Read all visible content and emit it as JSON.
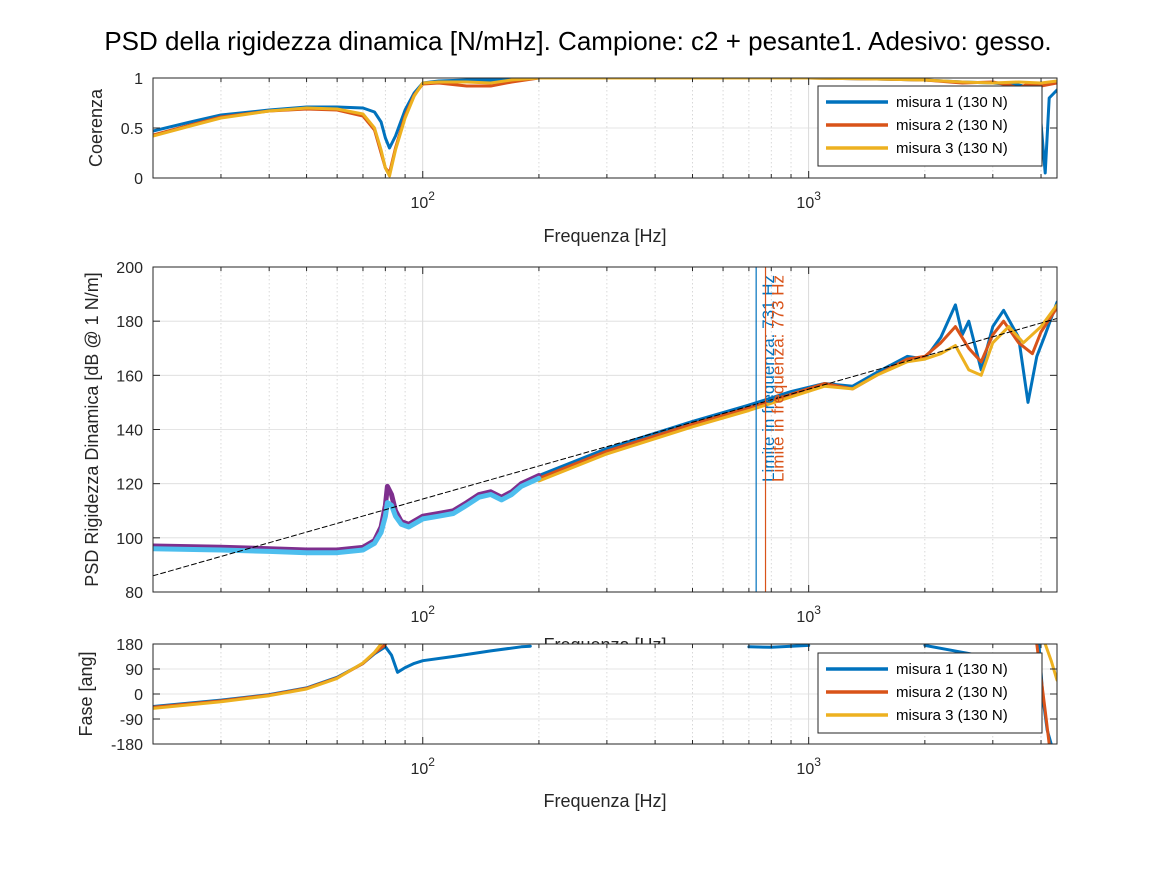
{
  "title": "PSD della rigidezza dinamica [N/mHz]. Campione: c2 + pesante1. Adesivo: gesso.",
  "colors": {
    "m1": "#0072BD",
    "m2": "#D95319",
    "m3": "#EDB120",
    "purple": "#7E2F8E",
    "lightblue": "#4DBEEE",
    "fit": "#000000",
    "vl1": "#0072BD",
    "vl2": "#D95319"
  },
  "chart_data": [
    {
      "id": "coherence",
      "type": "line",
      "xscale": "log",
      "xlim": [
        20,
        4400
      ],
      "ylim": [
        0,
        1
      ],
      "xticks": [
        100,
        1000
      ],
      "xtick_labels": [
        "10²",
        "10³"
      ],
      "yticks": [
        0,
        0.5,
        1
      ],
      "ytick_labels": [
        "0",
        "0.5",
        "1"
      ],
      "xlabel": "Frequenza [Hz]",
      "ylabel": "Coerenza",
      "grid": true,
      "legend": {
        "position": "top-right",
        "entries": [
          "misura 1 (130 N)",
          "misura 2 (130 N)",
          "misura 3 (130 N)"
        ]
      },
      "series": [
        {
          "name": "misura 1 (130 N)",
          "color": "m1",
          "x": [
            20,
            25,
            30,
            40,
            50,
            60,
            70,
            75,
            78,
            80,
            82,
            85,
            90,
            95,
            100,
            110,
            130,
            160,
            200,
            400,
            1000,
            1500,
            2000,
            2500,
            3000,
            3500,
            3800,
            4000,
            4100,
            4200,
            4400
          ],
          "y": [
            0.47,
            0.56,
            0.63,
            0.68,
            0.71,
            0.71,
            0.7,
            0.66,
            0.56,
            0.4,
            0.3,
            0.42,
            0.68,
            0.85,
            0.95,
            0.97,
            0.98,
            0.98,
            1.0,
            1.0,
            1.0,
            0.99,
            0.98,
            0.96,
            0.95,
            0.93,
            0.9,
            0.55,
            0.05,
            0.8,
            0.88
          ]
        },
        {
          "name": "misura 2 (130 N)",
          "color": "m2",
          "x": [
            20,
            25,
            30,
            40,
            50,
            60,
            70,
            75,
            78,
            80,
            82,
            85,
            90,
            95,
            100,
            110,
            130,
            150,
            170,
            200,
            400,
            1000,
            1500,
            2000,
            2500,
            3000,
            3300,
            3500,
            3700,
            4000,
            4400
          ],
          "y": [
            0.43,
            0.53,
            0.61,
            0.67,
            0.69,
            0.68,
            0.62,
            0.48,
            0.25,
            0.1,
            0.05,
            0.3,
            0.62,
            0.83,
            0.94,
            0.95,
            0.92,
            0.92,
            0.96,
            1.0,
            1.0,
            1.0,
            0.99,
            0.98,
            0.95,
            0.96,
            0.93,
            0.9,
            0.94,
            0.92,
            0.95
          ]
        },
        {
          "name": "misura 3 (130 N)",
          "color": "m3",
          "x": [
            20,
            25,
            30,
            40,
            50,
            60,
            70,
            75,
            78,
            80,
            82,
            85,
            90,
            95,
            100,
            110,
            130,
            150,
            170,
            200,
            400,
            1000,
            1500,
            2000,
            2500,
            3000,
            3500,
            4000,
            4400
          ],
          "y": [
            0.42,
            0.52,
            0.6,
            0.67,
            0.7,
            0.69,
            0.64,
            0.5,
            0.28,
            0.1,
            0.02,
            0.28,
            0.6,
            0.82,
            0.95,
            0.96,
            0.96,
            0.95,
            0.98,
            1.0,
            1.0,
            1.0,
            0.99,
            0.98,
            0.96,
            0.95,
            0.96,
            0.95,
            0.97
          ]
        }
      ]
    },
    {
      "id": "psd",
      "type": "line",
      "xscale": "log",
      "xlim": [
        20,
        4400
      ],
      "ylim": [
        80,
        200
      ],
      "xticks": [
        100,
        1000
      ],
      "xtick_labels": [
        "10²",
        "10³"
      ],
      "yticks": [
        80,
        100,
        120,
        140,
        160,
        180,
        200
      ],
      "ytick_labels": [
        "80",
        "100",
        "120",
        "140",
        "160",
        "180",
        "200"
      ],
      "xlabel": "Frequenza [Hz]",
      "ylabel": "PSD Rigidezza Dinamica [dB @ 1 N/m]",
      "grid": true,
      "series": [
        {
          "name": "misura 1 (130 N)",
          "color": "m1",
          "x": [
            200,
            300,
            500,
            700,
            900,
            1100,
            1300,
            1500,
            1800,
            2000,
            2200,
            2400,
            2500,
            2600,
            2800,
            3000,
            3200,
            3500,
            3700,
            3900,
            4100,
            4400
          ],
          "y": [
            123,
            133,
            143,
            149,
            154,
            157,
            156,
            161,
            167,
            166,
            174,
            186,
            175,
            180,
            162,
            178,
            184,
            174,
            150,
            167,
            175,
            187
          ]
        },
        {
          "name": "misura 2 (130 N)",
          "color": "m2",
          "x": [
            200,
            300,
            500,
            700,
            900,
            1100,
            1300,
            1500,
            1800,
            2000,
            2200,
            2400,
            2600,
            2800,
            3000,
            3200,
            3500,
            3800,
            4000,
            4400
          ],
          "y": [
            122,
            132,
            142,
            148,
            153,
            157,
            155,
            160,
            166,
            167,
            172,
            178,
            170,
            165,
            175,
            180,
            172,
            168,
            176,
            185
          ]
        },
        {
          "name": "misura 3 (130 N)",
          "color": "m3",
          "x": [
            200,
            300,
            500,
            700,
            900,
            1100,
            1300,
            1500,
            1800,
            2000,
            2200,
            2400,
            2600,
            2800,
            3000,
            3300,
            3600,
            4000,
            4400
          ],
          "y": [
            121,
            131,
            141,
            147,
            152,
            156,
            155,
            160,
            165,
            166,
            168,
            171,
            162,
            160,
            172,
            178,
            172,
            178,
            186
          ]
        },
        {
          "name": "",
          "color": "purple",
          "x": [
            20,
            30,
            40,
            50,
            60,
            70,
            75,
            78,
            80,
            81,
            83,
            85,
            88,
            92,
            100,
            110,
            120,
            130,
            140,
            150,
            160,
            170,
            180,
            200
          ],
          "y": [
            97,
            96.5,
            96,
            95.5,
            95.5,
            96.5,
            99,
            104,
            112,
            119,
            116,
            110,
            106,
            105,
            108,
            109,
            110,
            113,
            116,
            117,
            115,
            117,
            120,
            123
          ]
        },
        {
          "name": "",
          "color": "lightblue",
          "x": [
            20,
            30,
            40,
            50,
            60,
            70,
            75,
            78,
            80,
            81,
            83,
            85,
            88,
            92,
            100,
            110,
            120,
            130,
            140,
            150,
            160,
            170,
            180,
            200
          ],
          "y": [
            96,
            95.5,
            95,
            94.5,
            94.5,
            95.5,
            98,
            102,
            108,
            113,
            112,
            108,
            105,
            104,
            107,
            108,
            109,
            112,
            115,
            116,
            114,
            116,
            119,
            122
          ]
        },
        {
          "name": "",
          "color": "fit",
          "dashed": true,
          "x": [
            20,
            4400
          ],
          "y": [
            86,
            181
          ]
        }
      ],
      "vlines": [
        {
          "x": 731,
          "color": "vl1",
          "label": "Limite in frequenza: 731 Hz"
        },
        {
          "x": 773,
          "color": "vl2",
          "label": "Limite in frequenza: 773 Hz"
        }
      ]
    },
    {
      "id": "phase",
      "type": "line",
      "xscale": "log",
      "xlim": [
        20,
        4400
      ],
      "ylim": [
        -180,
        180
      ],
      "xticks": [
        100,
        1000
      ],
      "xtick_labels": [
        "10²",
        "10³"
      ],
      "yticks": [
        -180,
        -90,
        0,
        90,
        180
      ],
      "ytick_labels": [
        "-180",
        "-90",
        "0",
        "90",
        "180"
      ],
      "xlabel": "Frequenza [Hz]",
      "ylabel": "Fase [ang]",
      "grid": true,
      "legend": {
        "position": "top-right",
        "entries": [
          "misura 1 (130 N)",
          "misura 2 (130 N)",
          "misura 3 (130 N)"
        ]
      },
      "series": [
        {
          "name": "misura 1 (130 N)",
          "color": "m1",
          "segments": [
            {
              "x": [
                20,
                30,
                40,
                50,
                60,
                70,
                75,
                80,
                83,
                86,
                90,
                95,
                100,
                120,
                150,
                180,
                190
              ],
              "y": [
                -45,
                -22,
                -2,
                22,
                60,
                110,
                145,
                170,
                140,
                78,
                95,
                110,
                120,
                135,
                155,
                170,
                172
              ]
            },
            {
              "x": [
                700,
                800,
                1000
              ],
              "y": [
                170,
                168,
                175
              ]
            },
            {
              "x": [
                2000,
                2500,
                3000,
                3300
              ],
              "y": [
                175,
                150,
                130,
                110
              ]
            },
            {
              "x": [
                3950,
                4050,
                4150,
                4250
              ],
              "y": [
                180,
                -20,
                -130,
                -180
              ]
            }
          ]
        },
        {
          "name": "misura 2 (130 N)",
          "color": "m2",
          "segments": [
            {
              "x": [
                20,
                30,
                40,
                50,
                60,
                70,
                75,
                80
              ],
              "y": [
                -48,
                -25,
                -4,
                20,
                58,
                110,
                148,
                178
              ]
            },
            {
              "x": [
                3900,
                4000,
                4100,
                4200
              ],
              "y": [
                180,
                60,
                -60,
                -180
              ]
            }
          ]
        },
        {
          "name": "misura 3 (130 N)",
          "color": "m3",
          "segments": [
            {
              "x": [
                20,
                30,
                40,
                50,
                60,
                70,
                75,
                78
              ],
              "y": [
                -52,
                -28,
                -6,
                18,
                56,
                112,
                150,
                180
              ]
            },
            {
              "x": [
                4100,
                4250,
                4400
              ],
              "y": [
                180,
                120,
                50
              ]
            }
          ]
        }
      ]
    }
  ]
}
